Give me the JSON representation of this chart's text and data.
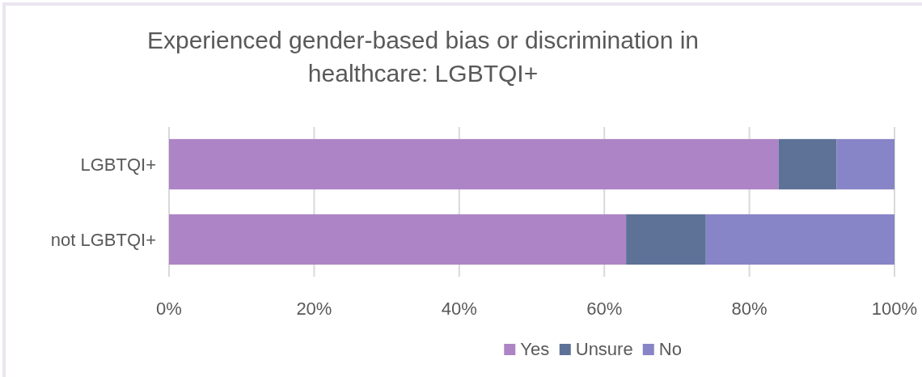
{
  "chart_data": {
    "type": "bar",
    "orientation": "horizontal",
    "stacked": true,
    "title": "Experienced gender-based bias or discrimination in healthcare: LGBTQI+",
    "categories": [
      "LGBTQI+",
      "not LGBTQI+"
    ],
    "series": [
      {
        "name": "Yes",
        "color": "#ad84c6",
        "values": [
          0.84,
          0.63
        ]
      },
      {
        "name": "Unsure",
        "color": "#5e7297",
        "values": [
          0.08,
          0.11
        ]
      },
      {
        "name": "No",
        "color": "#8784c7",
        "values": [
          0.08,
          0.26
        ]
      }
    ],
    "xlim": [
      0,
      1
    ],
    "xticks": [
      {
        "value": 0,
        "label": "0%"
      },
      {
        "value": 0.2,
        "label": "20%"
      },
      {
        "value": 0.4,
        "label": "40%"
      },
      {
        "value": 0.6,
        "label": "60%"
      },
      {
        "value": 0.8,
        "label": "80%"
      },
      {
        "value": 1,
        "label": "100%"
      }
    ],
    "grid": "x",
    "legend": "bottom"
  }
}
